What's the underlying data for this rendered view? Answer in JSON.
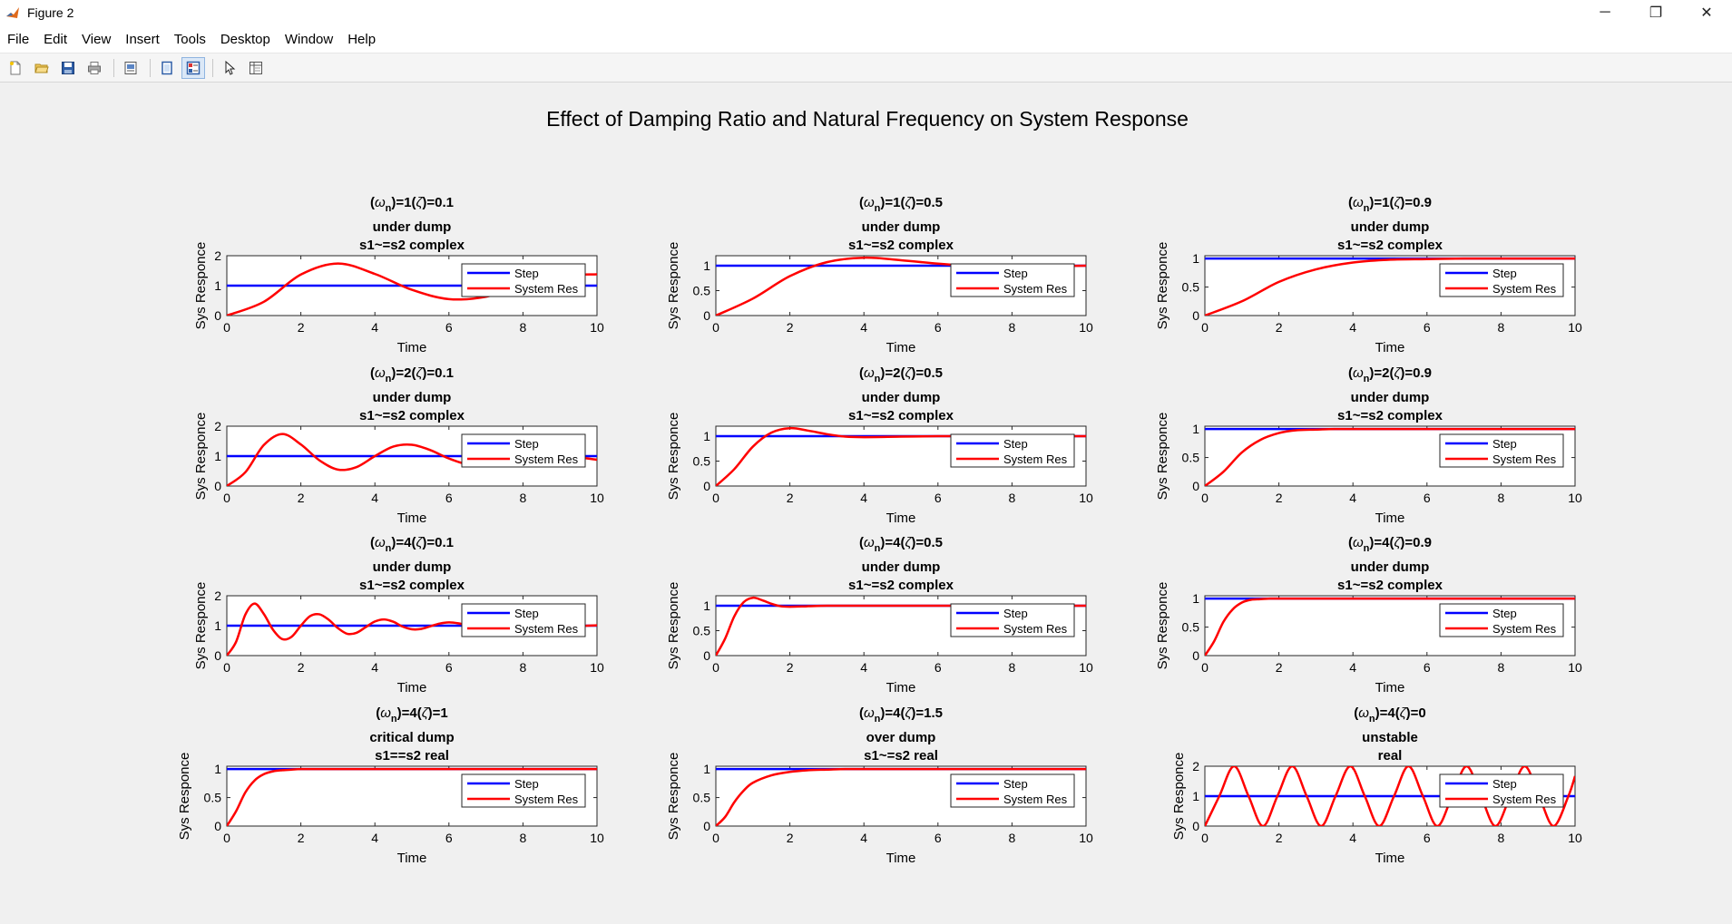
{
  "window": {
    "title": "Figure 2",
    "minimize": "─",
    "maximize": "❐",
    "close": "✕"
  },
  "menu": [
    "File",
    "Edit",
    "View",
    "Insert",
    "Tools",
    "Desktop",
    "Window",
    "Help"
  ],
  "toolbar": [
    "new-figure-icon",
    "open-file-icon",
    "save-icon",
    "print-icon",
    "print-preview-icon",
    "hide-plot-tools-icon",
    "show-plot-tools-icon",
    "edit-plot-pointer-icon",
    "property-inspector-icon"
  ],
  "colors": {
    "step": "#0000ff",
    "response": "#ff0000",
    "background": "#f0f0f0"
  },
  "figure_title": "Effect of Damping Ratio and Natural Frequency on System Response",
  "chart_data": [
    {
      "type": "line",
      "wn": 1,
      "zeta": 0.1,
      "title_line2": "under dump",
      "title_line3": "s1~=s2  complex",
      "xlabel": "Time",
      "ylabel": "Sys Responce",
      "xlim": [
        0,
        10
      ],
      "ylim": [
        0,
        2
      ],
      "yticks": [
        0,
        1,
        2
      ],
      "xticks": [
        0,
        2,
        4,
        6,
        8,
        10
      ],
      "legend": [
        "Step",
        "System Res"
      ],
      "legend_position": "east",
      "series": [
        {
          "name": "Step",
          "x": [
            0,
            10
          ],
          "y": [
            1,
            1
          ]
        },
        {
          "name": "System Res",
          "x": [
            0,
            1,
            2,
            3,
            4,
            5,
            6,
            7,
            8,
            9,
            10
          ],
          "y": [
            0,
            0.46,
            1.37,
            1.74,
            1.39,
            0.86,
            0.55,
            0.63,
            1.0,
            1.32,
            1.38
          ]
        }
      ]
    },
    {
      "type": "line",
      "wn": 1,
      "zeta": 0.5,
      "title_line2": "under dump",
      "title_line3": "s1~=s2  complex",
      "xlabel": "Time",
      "ylabel": "Sys Responce",
      "xlim": [
        0,
        10
      ],
      "ylim": [
        0,
        1.2
      ],
      "yticks": [
        0,
        0.5,
        1
      ],
      "xticks": [
        0,
        2,
        4,
        6,
        8,
        10
      ],
      "legend": [
        "Step",
        "System Res"
      ],
      "legend_position": "east",
      "series": [
        {
          "name": "Step",
          "x": [
            0,
            10
          ],
          "y": [
            1,
            1
          ]
        },
        {
          "name": "System Res",
          "x": [
            0,
            1,
            2,
            3,
            4,
            5,
            6,
            7,
            8,
            9,
            10
          ],
          "y": [
            0,
            0.34,
            0.79,
            1.07,
            1.16,
            1.11,
            1.04,
            0.99,
            0.98,
            0.99,
            1.0
          ]
        }
      ]
    },
    {
      "type": "line",
      "wn": 1,
      "zeta": 0.9,
      "title_line2": "under dump",
      "title_line3": "s1~=s2  complex",
      "xlabel": "Time",
      "ylabel": "Sys Responce",
      "xlim": [
        0,
        10
      ],
      "ylim": [
        0,
        1.05
      ],
      "yticks": [
        0,
        0.5,
        1
      ],
      "xticks": [
        0,
        2,
        4,
        6,
        8,
        10
      ],
      "legend": [
        "Step",
        "System Res"
      ],
      "legend_position": "east",
      "series": [
        {
          "name": "Step",
          "x": [
            0,
            10
          ],
          "y": [
            1,
            1
          ]
        },
        {
          "name": "System Res",
          "x": [
            0,
            1,
            2,
            3,
            4,
            5,
            6,
            7,
            8,
            9,
            10
          ],
          "y": [
            0,
            0.25,
            0.59,
            0.81,
            0.93,
            0.98,
            0.99,
            1.0,
            1.0,
            1.0,
            1.0
          ]
        }
      ]
    },
    {
      "type": "line",
      "wn": 2,
      "zeta": 0.1,
      "title_line2": "under dump",
      "title_line3": "s1~=s2  complex",
      "xlabel": "Time",
      "ylabel": "Sys Responce",
      "xlim": [
        0,
        10
      ],
      "ylim": [
        0,
        2
      ],
      "yticks": [
        0,
        1,
        2
      ],
      "xticks": [
        0,
        2,
        4,
        6,
        8,
        10
      ],
      "legend": [
        "Step",
        "System Res"
      ],
      "legend_position": "east",
      "series": [
        {
          "name": "Step",
          "x": [
            0,
            10
          ],
          "y": [
            1,
            1
          ]
        },
        {
          "name": "System Res",
          "x": [
            0,
            0.5,
            1,
            1.5,
            2,
            2.5,
            3,
            3.5,
            4,
            4.5,
            5,
            5.5,
            6,
            6.5,
            7,
            7.5,
            8,
            8.5,
            9,
            9.5,
            10
          ],
          "y": [
            0,
            0.46,
            1.37,
            1.74,
            1.39,
            0.86,
            0.55,
            0.63,
            1.0,
            1.32,
            1.38,
            1.2,
            0.92,
            0.73,
            0.76,
            0.95,
            1.14,
            1.21,
            1.13,
            0.97,
            0.88
          ]
        }
      ]
    },
    {
      "type": "line",
      "wn": 2,
      "zeta": 0.5,
      "title_line2": "under dump",
      "title_line3": "s1~=s2  complex",
      "xlabel": "Time",
      "ylabel": "Sys Responce",
      "xlim": [
        0,
        10
      ],
      "ylim": [
        0,
        1.2
      ],
      "yticks": [
        0,
        0.5,
        1
      ],
      "xticks": [
        0,
        2,
        4,
        6,
        8,
        10
      ],
      "legend": [
        "Step",
        "System Res"
      ],
      "legend_position": "east",
      "series": [
        {
          "name": "Step",
          "x": [
            0,
            10
          ],
          "y": [
            1,
            1
          ]
        },
        {
          "name": "System Res",
          "x": [
            0,
            0.5,
            1,
            1.5,
            2,
            2.5,
            3,
            3.5,
            4,
            5,
            6,
            7,
            8,
            10
          ],
          "y": [
            0,
            0.34,
            0.79,
            1.07,
            1.16,
            1.11,
            1.04,
            0.99,
            0.98,
            0.99,
            1.0,
            1.0,
            1.0,
            1.0
          ]
        }
      ]
    },
    {
      "type": "line",
      "wn": 2,
      "zeta": 0.9,
      "title_line2": "under dump",
      "title_line3": "s1~=s2  complex",
      "xlabel": "Time",
      "ylabel": "Sys Responce",
      "xlim": [
        0,
        10
      ],
      "ylim": [
        0,
        1.05
      ],
      "yticks": [
        0,
        0.5,
        1
      ],
      "xticks": [
        0,
        2,
        4,
        6,
        8,
        10
      ],
      "legend": [
        "Step",
        "System Res"
      ],
      "legend_position": "east",
      "series": [
        {
          "name": "Step",
          "x": [
            0,
            10
          ],
          "y": [
            1,
            1
          ]
        },
        {
          "name": "System Res",
          "x": [
            0,
            0.5,
            1,
            1.5,
            2,
            2.5,
            3,
            3.5,
            4,
            5,
            6,
            8,
            10
          ],
          "y": [
            0,
            0.25,
            0.59,
            0.81,
            0.93,
            0.98,
            0.99,
            1.0,
            1.0,
            1.0,
            1.0,
            1.0,
            1.0
          ]
        }
      ]
    },
    {
      "type": "line",
      "wn": 4,
      "zeta": 0.1,
      "title_line2": "under dump",
      "title_line3": "s1~=s2  complex",
      "xlabel": "Time",
      "ylabel": "Sys Responce",
      "xlim": [
        0,
        10
      ],
      "ylim": [
        0,
        2
      ],
      "yticks": [
        0,
        1,
        2
      ],
      "xticks": [
        0,
        2,
        4,
        6,
        8,
        10
      ],
      "legend": [
        "Step",
        "System Res"
      ],
      "legend_position": "east",
      "series": [
        {
          "name": "Step",
          "x": [
            0,
            10
          ],
          "y": [
            1,
            1
          ]
        },
        {
          "name": "System Res",
          "x": [
            0,
            0.25,
            0.5,
            0.75,
            1,
            1.25,
            1.5,
            1.75,
            2,
            2.25,
            2.5,
            2.75,
            3,
            3.25,
            3.5,
            3.75,
            4,
            4.25,
            4.5,
            4.75,
            5,
            5.25,
            5.5,
            5.75,
            6,
            6.25,
            6.5,
            6.75,
            7,
            7.5,
            8,
            8.5,
            9,
            9.5,
            10
          ],
          "y": [
            0,
            0.46,
            1.37,
            1.74,
            1.39,
            0.86,
            0.55,
            0.63,
            1.0,
            1.32,
            1.38,
            1.2,
            0.92,
            0.73,
            0.76,
            0.95,
            1.14,
            1.21,
            1.13,
            0.97,
            0.88,
            0.89,
            0.98,
            1.07,
            1.11,
            1.08,
            1.01,
            0.95,
            0.94,
            1.02,
            1.05,
            1.01,
            0.98,
            0.99,
            1.01
          ]
        }
      ]
    },
    {
      "type": "line",
      "wn": 4,
      "zeta": 0.5,
      "title_line2": "under dump",
      "title_line3": "s1~=s2  complex",
      "xlabel": "Time",
      "ylabel": "Sys Responce",
      "xlim": [
        0,
        10
      ],
      "ylim": [
        0,
        1.2
      ],
      "yticks": [
        0,
        0.5,
        1
      ],
      "xticks": [
        0,
        2,
        4,
        6,
        8,
        10
      ],
      "legend": [
        "Step",
        "System Res"
      ],
      "legend_position": "east",
      "series": [
        {
          "name": "Step",
          "x": [
            0,
            10
          ],
          "y": [
            1,
            1
          ]
        },
        {
          "name": "System Res",
          "x": [
            0,
            0.25,
            0.5,
            0.75,
            1,
            1.25,
            1.5,
            1.75,
            2,
            2.5,
            3,
            4,
            5,
            10
          ],
          "y": [
            0,
            0.34,
            0.79,
            1.07,
            1.16,
            1.11,
            1.04,
            0.99,
            0.98,
            0.99,
            1.0,
            1.0,
            1.0,
            1.0
          ]
        }
      ]
    },
    {
      "type": "line",
      "wn": 4,
      "zeta": 0.9,
      "title_line2": "under dump",
      "title_line3": "s1~=s2  complex",
      "xlabel": "Time",
      "ylabel": "Sys Responce",
      "xlim": [
        0,
        10
      ],
      "ylim": [
        0,
        1.05
      ],
      "yticks": [
        0,
        0.5,
        1
      ],
      "xticks": [
        0,
        2,
        4,
        6,
        8,
        10
      ],
      "legend": [
        "Step",
        "System Res"
      ],
      "legend_position": "east",
      "series": [
        {
          "name": "Step",
          "x": [
            0,
            10
          ],
          "y": [
            1,
            1
          ]
        },
        {
          "name": "System Res",
          "x": [
            0,
            0.25,
            0.5,
            0.75,
            1,
            1.25,
            1.5,
            1.75,
            2,
            3,
            4,
            6,
            10
          ],
          "y": [
            0,
            0.25,
            0.59,
            0.81,
            0.93,
            0.98,
            0.99,
            1.0,
            1.0,
            1.0,
            1.0,
            1.0,
            1.0
          ]
        }
      ]
    },
    {
      "type": "line",
      "wn": 4,
      "zeta": 1,
      "title_line2": "critical dump",
      "title_line3": "s1==s2  real",
      "xlabel": "Time",
      "ylabel": "Sys Responce",
      "xlim": [
        0,
        10
      ],
      "ylim": [
        0,
        1.05
      ],
      "yticks": [
        0,
        0.5,
        1
      ],
      "xticks": [
        0,
        2,
        4,
        6,
        8,
        10
      ],
      "legend": [
        "Step",
        "System Res"
      ],
      "legend_position": "east",
      "series": [
        {
          "name": "Step",
          "x": [
            0,
            10
          ],
          "y": [
            1,
            1
          ]
        },
        {
          "name": "System Res",
          "x": [
            0,
            0.25,
            0.5,
            0.75,
            1,
            1.25,
            1.5,
            1.75,
            2,
            2.5,
            3,
            4,
            10
          ],
          "y": [
            0,
            0.26,
            0.59,
            0.8,
            0.91,
            0.96,
            0.98,
            0.99,
            1.0,
            1.0,
            1.0,
            1.0,
            1.0
          ]
        }
      ]
    },
    {
      "type": "line",
      "wn": 4,
      "zeta": 1.5,
      "title_line2": "over dump",
      "title_line3": "s1~=s2  real",
      "xlabel": "Time",
      "ylabel": "Sys Responce",
      "xlim": [
        0,
        10
      ],
      "ylim": [
        0,
        1.05
      ],
      "yticks": [
        0,
        0.5,
        1
      ],
      "xticks": [
        0,
        2,
        4,
        6,
        8,
        10
      ],
      "legend": [
        "Step",
        "System Res"
      ],
      "legend_position": "east",
      "series": [
        {
          "name": "Step",
          "x": [
            0,
            10
          ],
          "y": [
            1,
            1
          ]
        },
        {
          "name": "System Res",
          "x": [
            0,
            0.25,
            0.5,
            0.75,
            1,
            1.5,
            2,
            2.5,
            3,
            3.5,
            4,
            5,
            10
          ],
          "y": [
            0,
            0.16,
            0.42,
            0.62,
            0.76,
            0.89,
            0.95,
            0.98,
            0.99,
            1.0,
            1.0,
            1.0,
            1.0
          ]
        }
      ]
    },
    {
      "type": "line",
      "wn": 4,
      "zeta": 0,
      "title_line2": "unstable",
      "title_line3": "real",
      "xlabel": "Time",
      "ylabel": "Sys Responce",
      "xlim": [
        0,
        10
      ],
      "ylim": [
        0,
        2
      ],
      "yticks": [
        0,
        1,
        2
      ],
      "xticks": [
        0,
        2,
        4,
        6,
        8,
        10
      ],
      "legend": [
        "Step",
        "System Res"
      ],
      "legend_position": "east",
      "series": [
        {
          "name": "Step",
          "x": [
            0,
            10
          ],
          "y": [
            1,
            1
          ]
        },
        {
          "name": "System Res",
          "x": [
            0,
            0.39,
            0.79,
            1.18,
            1.57,
            1.96,
            2.36,
            2.75,
            3.14,
            3.53,
            3.93,
            4.32,
            4.71,
            5.11,
            5.5,
            5.89,
            6.28,
            6.68,
            7.07,
            7.46,
            7.85,
            8.25,
            8.64,
            9.03,
            9.42,
            9.82,
            10
          ],
          "y": [
            0,
            1,
            2,
            1,
            0,
            1,
            2,
            1,
            0,
            1,
            2,
            1,
            0,
            1,
            2,
            1,
            0,
            1,
            2,
            1,
            0,
            1,
            2,
            1,
            0,
            1,
            1.67
          ]
        }
      ]
    }
  ]
}
